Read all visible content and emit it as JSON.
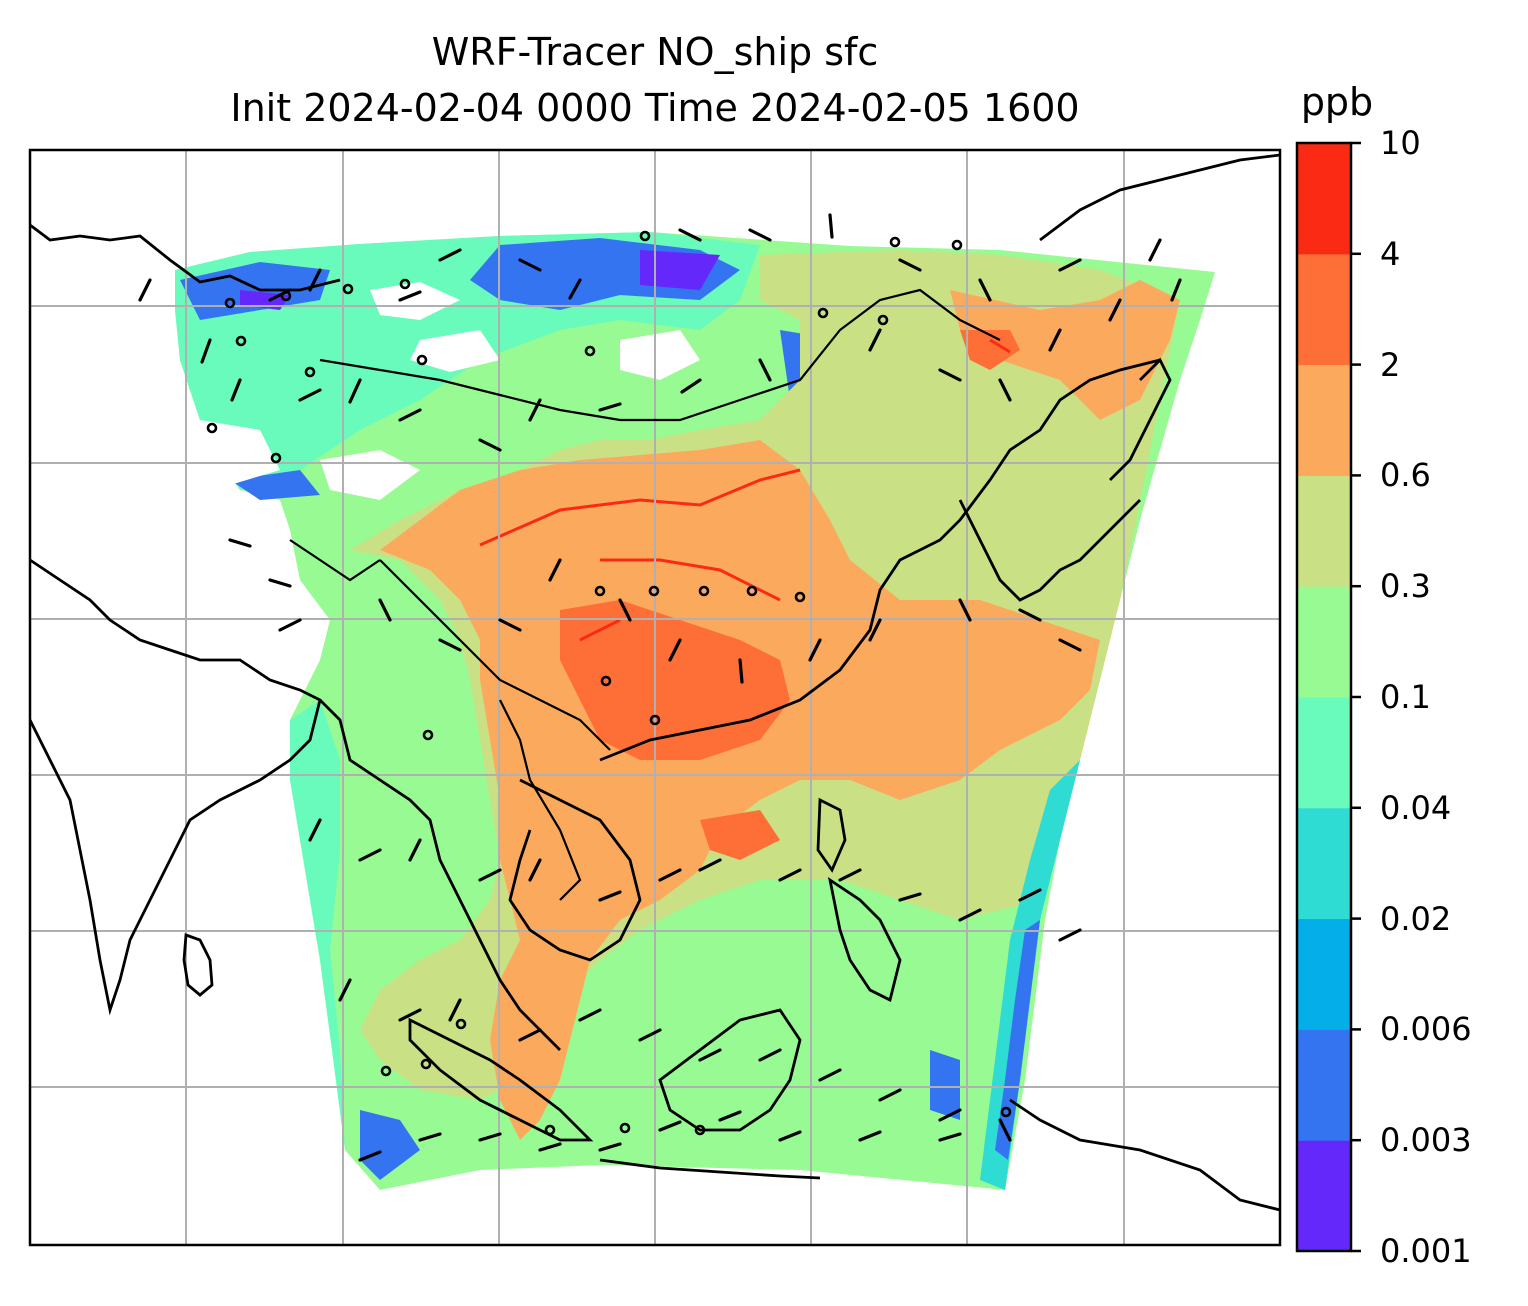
{
  "title": {
    "line1": "WRF-Tracer NO_ship sfc",
    "line2": "Init 2024-02-04 0000 Time 2024-02-05 1600"
  },
  "colorbar": {
    "unit": "ppb",
    "levels": [
      "0.001",
      "0.003",
      "0.006",
      "0.02",
      "0.04",
      "0.1",
      "0.3",
      "0.6",
      "2",
      "4",
      "10"
    ],
    "colors": [
      "#6528fb",
      "#3474f1",
      "#04aee8",
      "#2fdcd3",
      "#68fbbb",
      "#98fa93",
      "#c9e184",
      "#fbaa5d",
      "#fd6f36",
      "#fa2a14"
    ]
  },
  "map": {
    "gridlines": true,
    "features": [
      "coastlines",
      "country borders",
      "wind barbs",
      "tracer concentration field"
    ]
  }
}
